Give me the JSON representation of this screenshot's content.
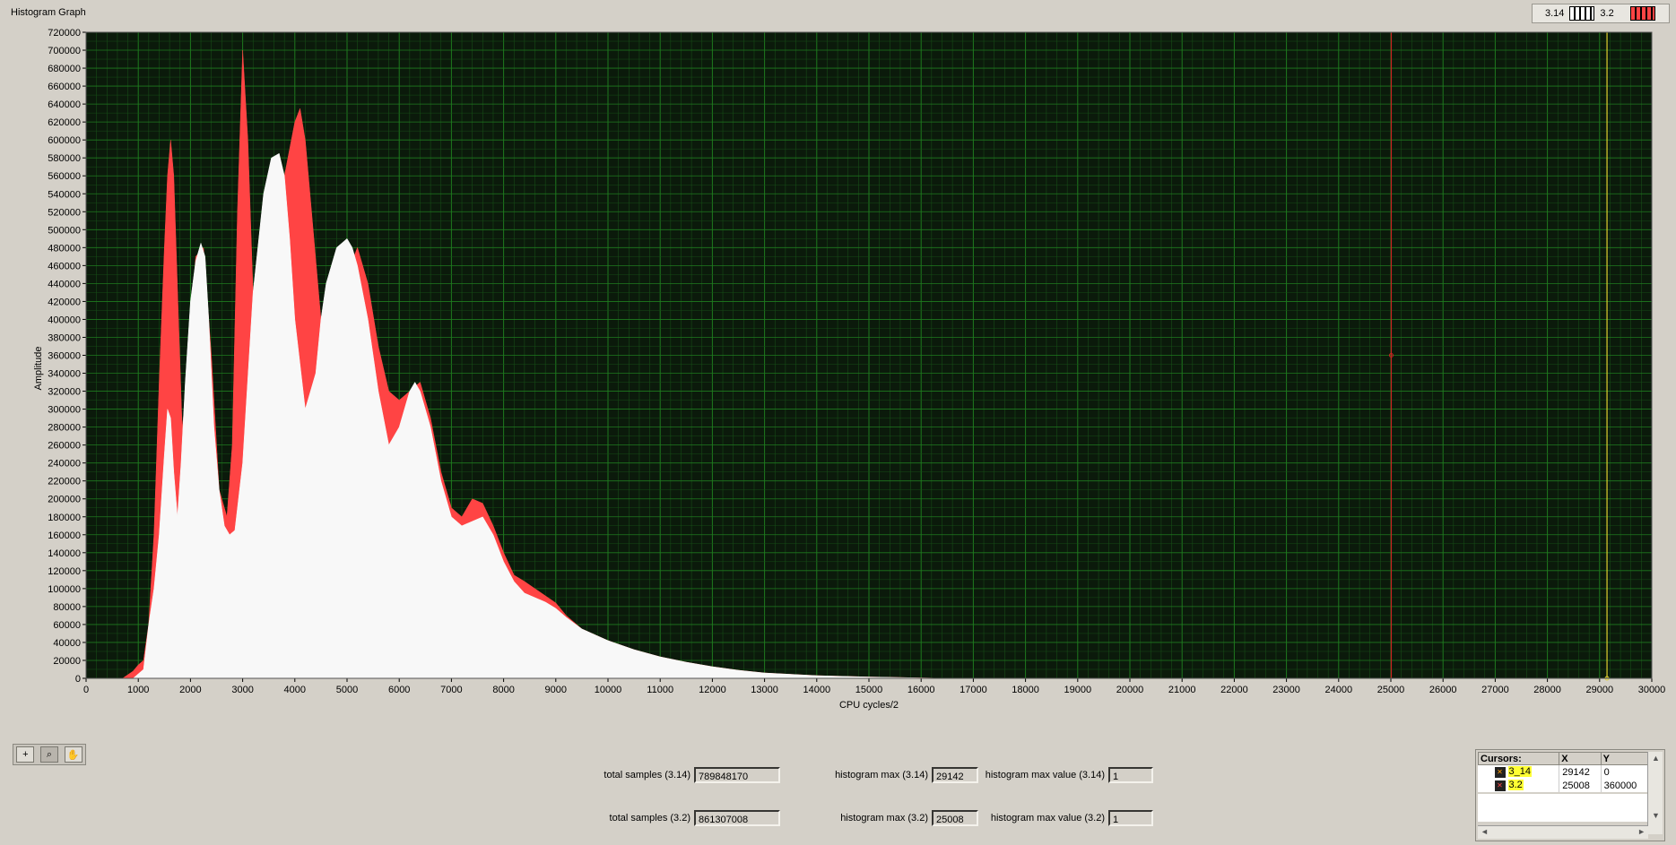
{
  "window": {
    "title": "Histogram Graph"
  },
  "legend": {
    "items": [
      {
        "label": "3.14",
        "color": "#ffffff",
        "icon": "plot-legend-white-icon"
      },
      {
        "label": "3.2",
        "color": "#ff4444",
        "icon": "plot-legend-red-icon"
      }
    ]
  },
  "colors": {
    "plot_bg": "#0b1a0b",
    "grid_major": "#1f7a1f",
    "grid_minor": "#174d17",
    "series_314": "#f8f8f8",
    "series_32": "#ff4444",
    "cursor_32": "#cc2222",
    "cursor_314": "#e0d030",
    "panel_bg": "#d4d0c8"
  },
  "graph": {
    "ylabel": "Amplitude",
    "xlabel": "CPU cycles/2"
  },
  "chart_data": {
    "type": "area",
    "title": "Histogram Graph",
    "xlabel": "CPU cycles/2",
    "ylabel": "Amplitude",
    "xlim": [
      0,
      30000
    ],
    "ylim": [
      0,
      720000
    ],
    "x_tick_step": 1000,
    "y_tick_step": 20000,
    "grid": true,
    "legend_position": "top-right",
    "series": [
      {
        "name": "3.2",
        "color": "#ff4444",
        "x": [
          700,
          900,
          1000,
          1100,
          1200,
          1300,
          1400,
          1500,
          1560,
          1620,
          1680,
          1760,
          1840,
          1950,
          2100,
          2250,
          2400,
          2550,
          2700,
          2800,
          2900,
          3000,
          3100,
          3200,
          3400,
          3600,
          3800,
          4000,
          4100,
          4200,
          4350,
          4500,
          4650,
          4800,
          5000,
          5200,
          5400,
          5600,
          5800,
          6000,
          6200,
          6400,
          6600,
          6800,
          7000,
          7200,
          7400,
          7600,
          7800,
          8000,
          8200,
          8400,
          8600,
          8800,
          9000,
          9200,
          9500,
          10000,
          10500,
          11000,
          11500,
          12000,
          12500,
          13000,
          14000,
          15000,
          16000,
          16500
        ],
        "y": [
          0,
          8000,
          15000,
          20000,
          60000,
          160000,
          330000,
          480000,
          560000,
          600000,
          560000,
          420000,
          280000,
          330000,
          470000,
          480000,
          360000,
          210000,
          180000,
          260000,
          520000,
          700000,
          600000,
          430000,
          330000,
          450000,
          560000,
          620000,
          635000,
          600000,
          500000,
          400000,
          370000,
          380000,
          450000,
          480000,
          440000,
          370000,
          320000,
          310000,
          320000,
          330000,
          290000,
          230000,
          190000,
          180000,
          200000,
          195000,
          170000,
          140000,
          115000,
          108000,
          100000,
          92000,
          84000,
          70000,
          55000,
          42000,
          32000,
          24000,
          18000,
          13000,
          9000,
          6000,
          3000,
          1500,
          500,
          0
        ]
      },
      {
        "name": "3.14",
        "color": "#f8f8f8",
        "x": [
          900,
          1000,
          1100,
          1200,
          1300,
          1400,
          1500,
          1560,
          1620,
          1680,
          1750,
          1820,
          1900,
          2000,
          2100,
          2200,
          2280,
          2350,
          2450,
          2550,
          2650,
          2750,
          2850,
          3000,
          3200,
          3400,
          3550,
          3700,
          3800,
          3900,
          4000,
          4200,
          4400,
          4500,
          4600,
          4800,
          5000,
          5100,
          5200,
          5400,
          5600,
          5800,
          6000,
          6200,
          6300,
          6400,
          6600,
          6800,
          7000,
          7200,
          7400,
          7600,
          7800,
          8000,
          8200,
          8400,
          8600,
          8800,
          9000,
          9200,
          9500,
          10000,
          10500,
          11000,
          11500,
          12000,
          12500,
          13000,
          14000,
          15000,
          16000,
          16500
        ],
        "y": [
          0,
          5000,
          10000,
          60000,
          100000,
          160000,
          250000,
          300000,
          290000,
          230000,
          180000,
          240000,
          330000,
          420000,
          465000,
          485000,
          470000,
          400000,
          280000,
          210000,
          170000,
          160000,
          165000,
          240000,
          430000,
          540000,
          580000,
          585000,
          560000,
          490000,
          400000,
          300000,
          340000,
          400000,
          440000,
          480000,
          490000,
          480000,
          460000,
          400000,
          320000,
          260000,
          280000,
          320000,
          330000,
          320000,
          280000,
          220000,
          180000,
          170000,
          175000,
          180000,
          160000,
          130000,
          108000,
          95000,
          90000,
          85000,
          78000,
          68000,
          55000,
          42000,
          32000,
          24000,
          18000,
          13000,
          9000,
          6000,
          3000,
          1500,
          500,
          0
        ]
      }
    ],
    "cursors": [
      {
        "name": "3_14",
        "x": 29142,
        "y": 0,
        "color": "#e0d030"
      },
      {
        "name": "3.2",
        "x": 25008,
        "y": 360000,
        "color": "#cc2222"
      }
    ]
  },
  "toolbar": {
    "tools": [
      {
        "icon": "crosshair-cursor-icon",
        "glyph": "+"
      },
      {
        "icon": "zoom-icon",
        "glyph": "⌕"
      },
      {
        "icon": "pan-hand-icon",
        "glyph": "✋"
      }
    ]
  },
  "indicators": {
    "total_samples_314": {
      "label": "total samples (3.14)",
      "value": "789848170"
    },
    "total_samples_32": {
      "label": "total samples (3.2)",
      "value": "861307008"
    },
    "hist_max_314": {
      "label": "histogram max (3.14)",
      "value": "29142"
    },
    "hist_max_32": {
      "label": "histogram max (3.2)",
      "value": "25008"
    },
    "hist_max_val_314": {
      "label": "histogram max value (3.14)",
      "value": "1"
    },
    "hist_max_val_32": {
      "label": "histogram max value (3.2)",
      "value": "1"
    }
  },
  "cursors_panel": {
    "header": {
      "name": "Cursors:",
      "x": "X",
      "y": "Y"
    },
    "rows": [
      {
        "name": "3_14",
        "x": "29142",
        "y": "0",
        "icon": "cursor-orange-icon"
      },
      {
        "name": "3.2",
        "x": "25008",
        "y": "360000",
        "icon": "cursor-red-icon"
      }
    ]
  }
}
